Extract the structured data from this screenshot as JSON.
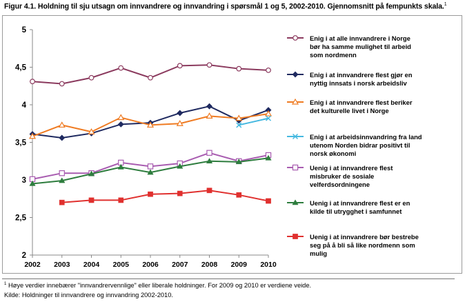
{
  "figure": {
    "title": "Figur 4.1. Holdning til sju utsagn om innvandrere og innvandring i spørsmål 1 og 5, 2002-2010. Gjennomsnitt på fempunkts skala.",
    "title_marker": "1",
    "footnote_marker": "1",
    "footnote": "Høye verdier innebærer \"innvandrervennlige\" eller liberale holdninger. For 2009 og 2010 er verdiene veide.",
    "source": "Kilde: Holdninger til innvandrere og innvandring 2002-2010."
  },
  "chart_data": {
    "type": "line",
    "x": [
      "2002",
      "2003",
      "2004",
      "2005",
      "2006",
      "2007",
      "2008",
      "2009",
      "2010"
    ],
    "ylim": [
      2,
      5
    ],
    "yticks": [
      "2",
      "2,5",
      "3",
      "3,5",
      "4",
      "4,5",
      "5"
    ],
    "grid": false,
    "legend_position": "right",
    "series": [
      {
        "name": "Enig i at alle innvandrere i Norge bør ha samme mulighet til arbeid som nordmenn",
        "name_lines": [
          "Enig i at alle innvandrere i Norge",
          "bør ha samme mulighet til arbeid",
          "som nordmenn"
        ],
        "color": "#8b3a5e",
        "marker": "circle-open",
        "values": [
          4.31,
          4.28,
          4.36,
          4.49,
          4.36,
          4.52,
          4.53,
          4.48,
          4.46
        ]
      },
      {
        "name": "Enig i at innvandrere flest gjør en nyttig innsats i norsk arbeidsliv",
        "name_lines": [
          "Enig i at innvandrere flest gjør en",
          "nyttig innsats i norsk arbeidsliv"
        ],
        "color": "#1f2a60",
        "marker": "diamond",
        "values": [
          3.61,
          3.56,
          3.62,
          3.74,
          3.76,
          3.89,
          3.98,
          3.79,
          3.93
        ]
      },
      {
        "name": "Enig i at innvandrere flest beriker det kulturelle livet i Norge",
        "name_lines": [
          "Enig i at innvandrere flest beriker",
          "det kulturelle livet i Norge"
        ],
        "color": "#ef7b22",
        "marker": "triangle-open",
        "values": [
          3.58,
          3.73,
          3.64,
          3.83,
          3.73,
          3.75,
          3.85,
          3.82,
          3.88
        ]
      },
      {
        "name": "Enig i at arbeidsinnvandring fra land utenom Norden bidrar positivt til norsk økonomi",
        "name_lines": [
          "Enig i at arbeidsinnvandring fra land",
          "utenom Norden bidrar positivt til",
          "norsk økonomi"
        ],
        "color": "#44b8e0",
        "marker": "x",
        "values": [
          null,
          null,
          null,
          null,
          null,
          null,
          null,
          3.73,
          3.82
        ]
      },
      {
        "name": "Uenig i at innvandrere flest misbruker de sosiale velferdsordningene",
        "name_lines": [
          "Uenig i at innvandrere flest",
          "misbruker de sosiale",
          "velferdsordningene"
        ],
        "color": "#a85cb0",
        "marker": "square-open",
        "values": [
          3.01,
          3.09,
          3.09,
          3.23,
          3.18,
          3.22,
          3.36,
          3.25,
          3.33
        ]
      },
      {
        "name": "Uenig i at innvandrere flest er en kilde til utrygghet i samfunnet",
        "name_lines": [
          "Uenig i at innvandrere flest er en",
          "kilde til utrygghet i samfunnet"
        ],
        "color": "#2e7d3e",
        "marker": "triangle",
        "values": [
          2.95,
          2.99,
          3.08,
          3.17,
          3.1,
          3.18,
          3.25,
          3.24,
          3.29
        ]
      },
      {
        "name": "Uenig i at innvandrere bør bestrebe seg på å bli så like nordmenn som mulig",
        "name_lines": [
          "Uenig i at innvandrere bør bestrebe",
          "seg på å bli så like nordmenn som",
          "mulig"
        ],
        "color": "#e0302e",
        "marker": "square",
        "values": [
          null,
          2.7,
          2.73,
          2.73,
          2.81,
          2.82,
          2.86,
          2.8,
          2.72
        ]
      }
    ]
  }
}
